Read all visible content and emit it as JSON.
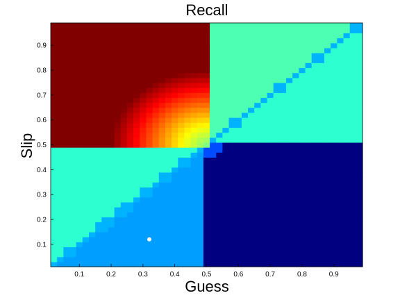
{
  "chart_data": {
    "type": "heatmap",
    "title": "Recall",
    "xlabel": "Guess",
    "ylabel": "Slip",
    "xlim": [
      0.01,
      0.99
    ],
    "ylim": [
      0.01,
      0.99
    ],
    "grid_step": 0.02,
    "grid": false,
    "legend": "none",
    "colormap": "jet",
    "x_ticks": [
      "0.1",
      "0.2",
      "0.3",
      "0.4",
      "0.5",
      "0.6",
      "0.7",
      "0.8",
      "0.9"
    ],
    "y_ticks": [
      "0.1",
      "0.2",
      "0.3",
      "0.4",
      "0.5",
      "0.6",
      "0.7",
      "0.8",
      "0.9"
    ],
    "value_range": [
      0,
      1
    ],
    "regions": [
      {
        "name": "top-left plateau",
        "x_range": [
          0.01,
          0.5
        ],
        "y_range": [
          0.5,
          0.99
        ],
        "value": 1.0
      },
      {
        "name": "bottom-right plateau",
        "x_range": [
          0.5,
          0.99
        ],
        "y_range": [
          0.01,
          0.5
        ],
        "value": 0.0
      },
      {
        "name": "diagonal lines x = y and x + y = 1",
        "value": 0.3
      },
      {
        "name": "side triangles",
        "value": 0.45
      },
      {
        "name": "bottom-left triangle",
        "value": 0.3
      }
    ],
    "marker": {
      "x": 0.32,
      "y": 0.12,
      "color": "#ffffff"
    }
  }
}
